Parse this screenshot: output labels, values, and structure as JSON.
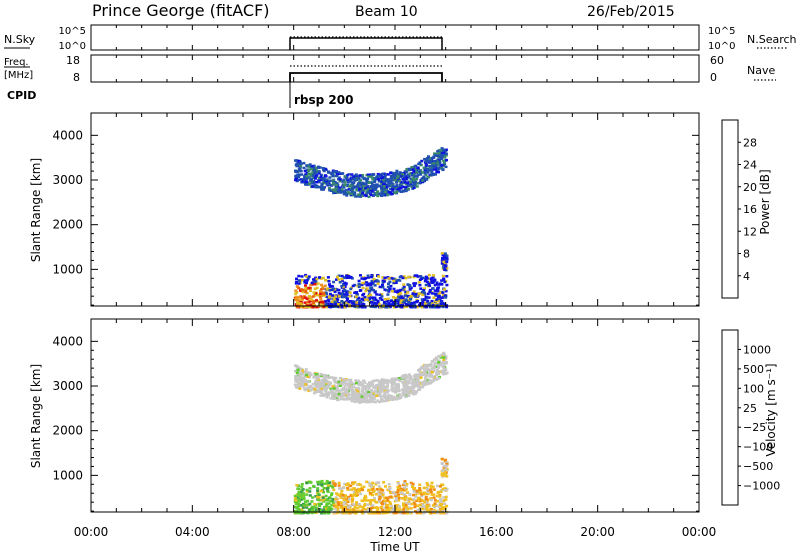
{
  "header": {
    "station": "Prince George (fitACF)",
    "beam": "Beam 10",
    "date": "26/Feb/2015"
  },
  "params_panel": {
    "nsky_label": "N.Sky",
    "nsky_ticks": [
      "10^5",
      "10^0"
    ],
    "nsearch_label": "N.Search",
    "freq_label_1": "Freq.",
    "freq_label_2": "[MHz]",
    "freq_ticks": [
      "18",
      "8"
    ],
    "nave_ticks": [
      "60",
      "0"
    ],
    "nave_label": "Nave",
    "cpid_label": "CPID",
    "cpid_value": "rbsp 200"
  },
  "x_axis": {
    "label": "Time UT",
    "ticks": [
      "00:00",
      "04:00",
      "08:00",
      "12:00",
      "16:00",
      "20:00",
      "00:00"
    ],
    "range_hours": [
      0,
      24
    ]
  },
  "chart_data": [
    {
      "type": "heatmap",
      "name": "power",
      "ylabel": "Slant Range [km]",
      "yticks": [
        "1000",
        "2000",
        "3000",
        "4000"
      ],
      "ylim": [
        180,
        4500
      ],
      "xlim": [
        0,
        24
      ],
      "colorbar_label": "Power [dB]",
      "colorbar_ticks": [
        "4",
        "8",
        "12",
        "16",
        "20",
        "24",
        "28"
      ],
      "colorbar_colors": [
        "#1010e0",
        "#2050b0",
        "#3a8a6a",
        "#40b040",
        "#e0c020",
        "#f09020",
        "#e86010",
        "#e01010"
      ],
      "data_window_hours": [
        8.0,
        14.0
      ],
      "echo_regions": [
        {
          "t_start": 8.0,
          "t_end": 14.0,
          "range_km": [
            2800,
            3500
          ],
          "description_values": [
            4,
            16
          ]
        },
        {
          "t_start": 8.0,
          "t_end": 14.0,
          "range_km": [
            180,
            900
          ],
          "description_values": [
            4,
            28
          ]
        },
        {
          "t_start": 13.8,
          "t_end": 14.0,
          "range_km": [
            1000,
            1400
          ],
          "description_values": [
            4,
            20
          ]
        }
      ]
    },
    {
      "type": "heatmap",
      "name": "velocity",
      "ylabel": "Slant Range [km]",
      "yticks": [
        "1000",
        "2000",
        "3000",
        "4000"
      ],
      "ylim": [
        180,
        4500
      ],
      "xlim": [
        0,
        24
      ],
      "colorbar_label": "Velocity [m s⁻¹]",
      "colorbar_ticks": [
        "1000",
        "500",
        "100",
        "25",
        "−25",
        "−100",
        "−500",
        "−1000"
      ],
      "colorbar_colors": [
        "#1414d8",
        "#2850b0",
        "#3a9a50",
        "#60cc30",
        "#c8c8c8",
        "#f0c020",
        "#f08c10",
        "#e85010",
        "#e01010"
      ],
      "data_window_hours": [
        8.0,
        14.0
      ],
      "echo_regions": [
        {
          "t_start": 8.0,
          "t_end": 14.0,
          "range_km": [
            2800,
            3500
          ],
          "description_values": [
            -25,
            25
          ]
        },
        {
          "t_start": 8.0,
          "t_end": 14.0,
          "range_km": [
            180,
            900
          ],
          "description_values": [
            -500,
            500
          ]
        },
        {
          "t_start": 13.8,
          "t_end": 14.0,
          "range_km": [
            1000,
            1400
          ],
          "description_values": [
            -100,
            25
          ]
        }
      ]
    }
  ]
}
